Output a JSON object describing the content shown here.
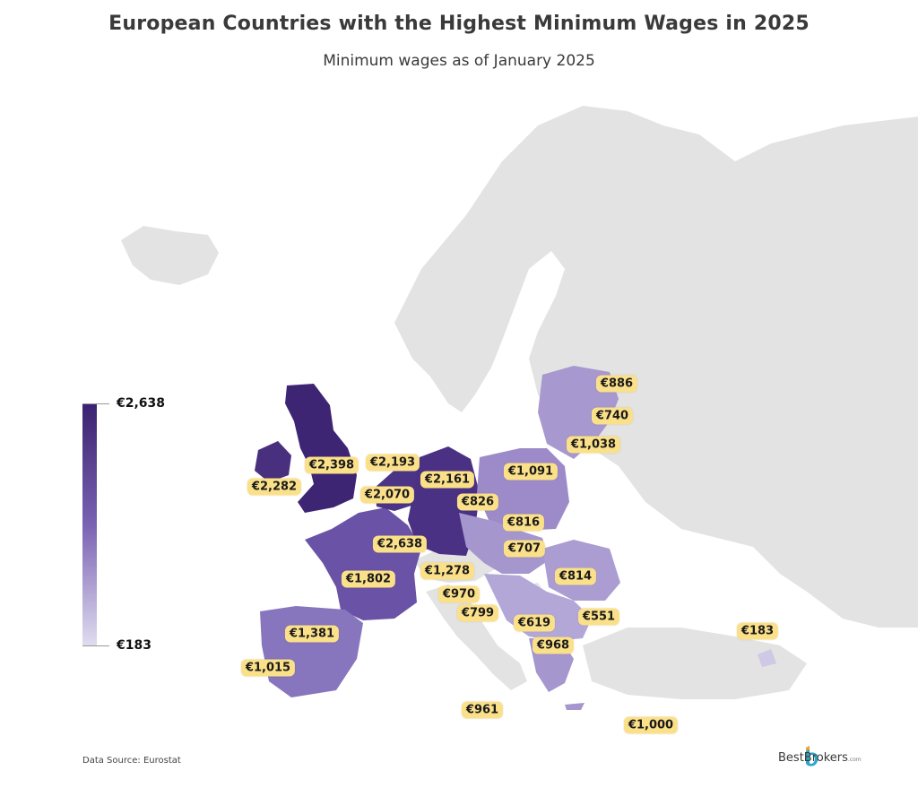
{
  "header": {
    "title": "European Countries with the Highest Minimum Wages in 2025",
    "subtitle": "Minimum wages as of January 2025"
  },
  "legend": {
    "max_label": "€2,638",
    "min_label": "€183",
    "max_color": "#3b2270",
    "min_color": "#e0dcef"
  },
  "colors": {
    "land": "#e3e3e3",
    "border": "#ffffff",
    "badge": "#fbe08a"
  },
  "wages": [
    {
      "label": "€886",
      "value": 886
    },
    {
      "label": "€740",
      "value": 740
    },
    {
      "label": "€1,038",
      "value": 1038
    },
    {
      "label": "€1,091",
      "value": 1091
    },
    {
      "label": "€2,398",
      "value": 2398
    },
    {
      "label": "€2,193",
      "value": 2193
    },
    {
      "label": "€2,282",
      "value": 2282
    },
    {
      "label": "€2,161",
      "value": 2161
    },
    {
      "label": "€2,070",
      "value": 2070
    },
    {
      "label": "€826",
      "value": 826
    },
    {
      "label": "€816",
      "value": 816
    },
    {
      "label": "€2,638",
      "value": 2638
    },
    {
      "label": "€707",
      "value": 707
    },
    {
      "label": "€1,802",
      "value": 1802
    },
    {
      "label": "€1,278",
      "value": 1278
    },
    {
      "label": "€814",
      "value": 814
    },
    {
      "label": "€970",
      "value": 970
    },
    {
      "label": "€799",
      "value": 799
    },
    {
      "label": "€619",
      "value": 619
    },
    {
      "label": "€551",
      "value": 551
    },
    {
      "label": "€1,381",
      "value": 1381
    },
    {
      "label": "€968",
      "value": 968
    },
    {
      "label": "€183",
      "value": 183
    },
    {
      "label": "€1,015",
      "value": 1015
    },
    {
      "label": "€961",
      "value": 961
    },
    {
      "label": "€1,000",
      "value": 1000
    }
  ],
  "footer": {
    "source": "Data Source: Eurostat",
    "logo_text": "BestBrokers",
    "logo_suffix": ".com"
  }
}
